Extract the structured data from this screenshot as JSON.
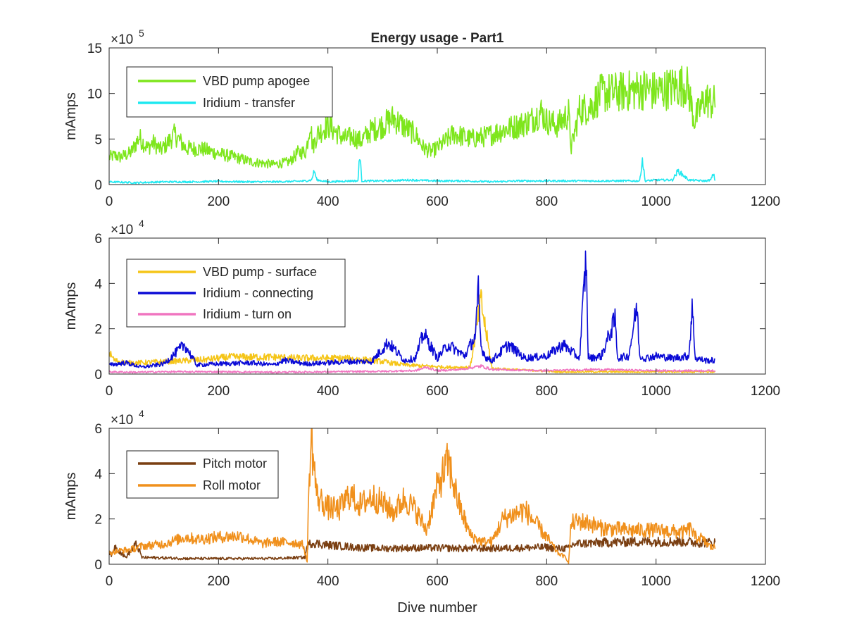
{
  "chart_data": [
    {
      "type": "line",
      "title": "Energy usage - Part1",
      "xlabel": "",
      "ylabel": "mAmps",
      "xlim": [
        0,
        1200
      ],
      "ylim": [
        0,
        15
      ],
      "exponent_base": "×10",
      "exponent_power": "5",
      "xticks": [
        "0",
        "200",
        "400",
        "600",
        "800",
        "1000",
        "1200"
      ],
      "yticks": [
        "0",
        "5",
        "10",
        "15"
      ],
      "xtick_values": [
        0,
        200,
        400,
        600,
        800,
        1000,
        1200
      ],
      "ytick_values": [
        0,
        5,
        10,
        15
      ],
      "legend_position": "top-left",
      "series": [
        {
          "name": "VBD pump apogee",
          "color": "#7ee61c",
          "x": [
            0,
            10,
            20,
            40,
            55,
            70,
            80,
            95,
            110,
            120,
            140,
            170,
            200,
            230,
            260,
            300,
            330,
            345,
            360,
            368,
            372,
            380,
            400,
            430,
            445,
            460,
            480,
            500,
            520,
            540,
            560,
            575,
            590,
            610,
            630,
            660,
            690,
            720,
            750,
            770,
            790,
            800,
            820,
            840,
            845,
            860,
            880,
            900,
            940,
            980,
            1000,
            1020,
            1040,
            1055,
            1060,
            1070,
            1090,
            1100,
            1108
          ],
          "y": [
            3.0,
            3.2,
            3.0,
            3.5,
            5.2,
            4.0,
            4.6,
            3.8,
            4.8,
            5.5,
            4.0,
            3.9,
            3.4,
            3.0,
            2.5,
            2.2,
            2.5,
            3.5,
            3.6,
            7.0,
            4.0,
            5.5,
            6.5,
            5.0,
            5.3,
            4.8,
            6.0,
            6.5,
            7.3,
            6.3,
            5.5,
            4.0,
            3.6,
            4.5,
            5.6,
            5.0,
            5.3,
            6.0,
            6.5,
            7.0,
            8.0,
            7.0,
            6.5,
            7.8,
            4.0,
            8.2,
            8.5,
            10.0,
            10.2,
            10.5,
            10.2,
            10.5,
            10.8,
            11.0,
            10.2,
            7.0,
            9.5,
            9.0,
            9.0
          ]
        },
        {
          "name": "Iridium - transfer",
          "color": "#1ee8f0",
          "x": [
            0,
            50,
            100,
            150,
            200,
            250,
            300,
            340,
            360,
            370,
            375,
            380,
            400,
            440,
            455,
            458,
            462,
            500,
            550,
            600,
            650,
            700,
            750,
            800,
            850,
            900,
            950,
            970,
            975,
            980,
            1000,
            1030,
            1040,
            1060,
            1090,
            1100,
            1105,
            1108
          ],
          "y": [
            0.3,
            0.2,
            0.3,
            0.3,
            0.35,
            0.3,
            0.3,
            0.35,
            0.4,
            0.5,
            1.5,
            0.5,
            0.3,
            0.4,
            0.4,
            3.5,
            0.4,
            0.4,
            0.5,
            0.4,
            0.4,
            0.3,
            0.4,
            0.4,
            0.4,
            0.4,
            0.4,
            0.4,
            2.8,
            0.4,
            0.5,
            0.5,
            1.5,
            0.5,
            0.4,
            0.5,
            1.2,
            0.4
          ]
        }
      ]
    },
    {
      "type": "line",
      "title": "",
      "xlabel": "",
      "ylabel": "mAmps",
      "xlim": [
        0,
        1200
      ],
      "ylim": [
        0,
        6
      ],
      "exponent_base": "×10",
      "exponent_power": "4",
      "xticks": [
        "0",
        "200",
        "400",
        "600",
        "800",
        "1000",
        "1200"
      ],
      "yticks": [
        "0",
        "2",
        "4",
        "6"
      ],
      "xtick_values": [
        0,
        200,
        400,
        600,
        800,
        1000,
        1200
      ],
      "ytick_values": [
        0,
        2,
        4,
        6
      ],
      "legend_position": "top-left",
      "series": [
        {
          "name": "VBD pump - surface",
          "color": "#f5c518",
          "x": [
            0,
            10,
            30,
            60,
            100,
            150,
            180,
            220,
            260,
            300,
            340,
            380,
            420,
            460,
            500,
            540,
            580,
            620,
            660,
            680,
            700,
            740,
            780,
            820,
            860,
            900,
            950,
            1000,
            1050,
            1108
          ],
          "y": [
            0.95,
            0.6,
            0.5,
            0.5,
            0.55,
            0.6,
            0.65,
            0.75,
            0.75,
            0.75,
            0.7,
            0.7,
            0.7,
            0.65,
            0.55,
            0.4,
            0.35,
            0.3,
            0.3,
            3.2,
            0.25,
            0.2,
            0.15,
            0.1,
            0.1,
            0.1,
            0.1,
            0.1,
            0.1,
            0.1
          ]
        },
        {
          "name": "Iridium - connecting",
          "color": "#0a0ad6",
          "x": [
            0,
            30,
            60,
            100,
            138,
            160,
            200,
            260,
            300,
            320,
            360,
            400,
            440,
            480,
            510,
            540,
            560,
            575,
            600,
            620,
            650,
            670,
            675,
            680,
            690,
            700,
            730,
            760,
            800,
            830,
            860,
            872,
            876,
            880,
            900,
            925,
            930,
            950,
            965,
            970,
            980,
            1000,
            1030,
            1060,
            1066,
            1072,
            1090,
            1108
          ],
          "y": [
            0.4,
            0.5,
            0.3,
            0.45,
            1.3,
            0.4,
            0.45,
            0.5,
            0.4,
            0.6,
            0.45,
            0.5,
            0.55,
            0.55,
            1.4,
            0.6,
            0.7,
            1.8,
            0.7,
            1.3,
            0.8,
            1.7,
            3.6,
            1.2,
            0.7,
            0.6,
            1.3,
            0.7,
            0.8,
            1.3,
            0.7,
            5.1,
            0.8,
            0.7,
            0.8,
            2.4,
            0.7,
            0.8,
            3.0,
            0.8,
            0.7,
            0.8,
            0.7,
            0.8,
            2.9,
            0.7,
            0.6,
            0.6
          ]
        },
        {
          "name": "Iridium - turn on",
          "color": "#f075c0",
          "x": [
            0,
            50,
            100,
            200,
            300,
            400,
            500,
            560,
            580,
            600,
            640,
            680,
            700,
            800,
            880,
            900,
            1000,
            1108
          ],
          "y": [
            0.1,
            0.08,
            0.1,
            0.1,
            0.08,
            0.1,
            0.12,
            0.15,
            0.3,
            0.15,
            0.2,
            0.35,
            0.2,
            0.15,
            0.2,
            0.2,
            0.15,
            0.15
          ]
        }
      ]
    },
    {
      "type": "line",
      "title": "",
      "xlabel": "Dive number",
      "ylabel": "mAmps",
      "xlim": [
        0,
        1200
      ],
      "ylim": [
        0,
        6
      ],
      "exponent_base": "×10",
      "exponent_power": "4",
      "xticks": [
        "0",
        "200",
        "400",
        "600",
        "800",
        "1000",
        "1200"
      ],
      "yticks": [
        "0",
        "2",
        "4",
        "6"
      ],
      "xtick_values": [
        0,
        200,
        400,
        600,
        800,
        1000,
        1200
      ],
      "ytick_values": [
        0,
        2,
        4,
        6
      ],
      "legend_position": "top-left",
      "series": [
        {
          "name": "Pitch motor",
          "color": "#7a3f12",
          "x": [
            0,
            5,
            10,
            30,
            50,
            60,
            100,
            150,
            200,
            250,
            300,
            350,
            358,
            362,
            370,
            400,
            450,
            500,
            550,
            600,
            650,
            700,
            750,
            800,
            810,
            820,
            840,
            850,
            900,
            950,
            1000,
            1050,
            1080,
            1100,
            1108
          ],
          "y": [
            0.6,
            0.35,
            0.8,
            0.3,
            0.9,
            0.3,
            0.28,
            0.25,
            0.25,
            0.25,
            0.25,
            0.3,
            0.3,
            0.8,
            0.95,
            0.85,
            0.75,
            0.7,
            0.72,
            0.72,
            0.7,
            0.7,
            0.72,
            0.75,
            0.72,
            0.7,
            0.7,
            0.9,
            0.95,
            1.0,
            1.0,
            1.0,
            0.95,
            0.95,
            0.95
          ]
        },
        {
          "name": "Roll motor",
          "color": "#f0901c",
          "x": [
            0,
            20,
            40,
            60,
            100,
            140,
            160,
            200,
            240,
            280,
            300,
            340,
            355,
            362,
            366,
            370,
            380,
            400,
            420,
            440,
            460,
            480,
            500,
            520,
            540,
            560,
            580,
            600,
            620,
            640,
            660,
            680,
            700,
            720,
            740,
            760,
            780,
            800,
            820,
            835,
            840,
            845,
            860,
            880,
            900,
            950,
            1000,
            1050,
            1065,
            1070,
            1080,
            1100,
            1108
          ],
          "y": [
            0.5,
            0.6,
            0.65,
            0.8,
            0.9,
            1.2,
            1.1,
            1.2,
            1.25,
            0.9,
            1.0,
            0.95,
            0.85,
            0.1,
            4.0,
            5.5,
            3.0,
            2.5,
            2.4,
            3.1,
            2.6,
            3.0,
            2.7,
            2.3,
            2.9,
            2.4,
            1.5,
            3.4,
            4.5,
            2.6,
            1.3,
            1.0,
            1.0,
            2.0,
            2.2,
            2.4,
            1.8,
            1.2,
            0.5,
            0.3,
            0.05,
            1.8,
            1.9,
            1.8,
            1.6,
            1.5,
            1.5,
            1.4,
            1.6,
            1.2,
            1.2,
            0.75,
            0.75
          ]
        }
      ]
    }
  ]
}
